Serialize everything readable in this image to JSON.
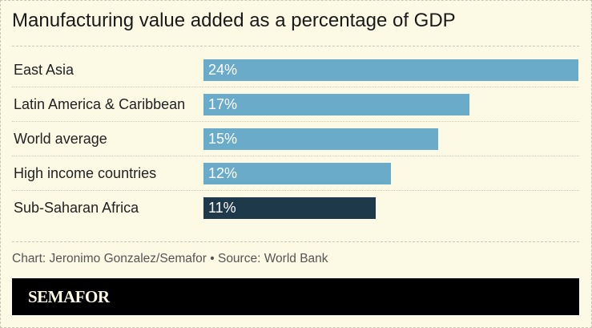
{
  "chart_data": {
    "type": "bar",
    "orientation": "horizontal",
    "title": "Manufacturing value added as a percentage of GDP",
    "categories": [
      "East Asia",
      "Latin America & Caribbean",
      "World average",
      "High income countries",
      "Sub-Saharan Africa"
    ],
    "values": [
      24,
      17,
      15,
      12,
      11
    ],
    "value_labels": [
      "24%",
      "17%",
      "15%",
      "12%",
      "11%"
    ],
    "colors": [
      "#6aabc9",
      "#6aabc9",
      "#6aabc9",
      "#6aabc9",
      "#1e3a4a"
    ],
    "xlim": [
      0,
      24
    ],
    "grid": false
  },
  "footer": {
    "credit": "Chart: Jeronimo Gonzalez/Semafor • Source: World Bank"
  },
  "brand": {
    "logo": "SEMAFOR"
  }
}
